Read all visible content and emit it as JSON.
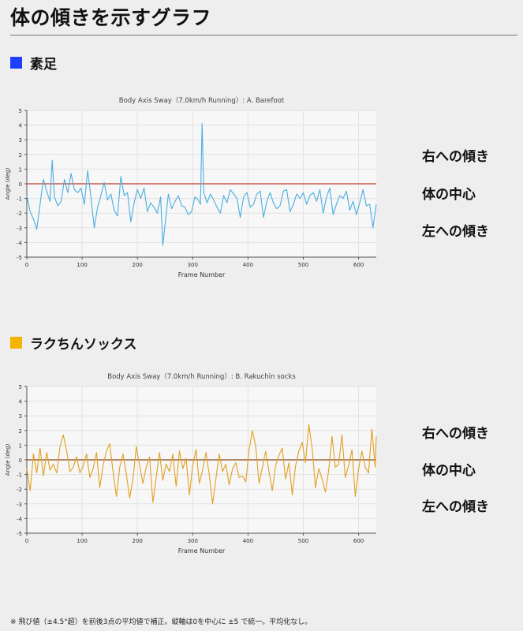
{
  "page": {
    "title": "体の傾きを示すグラフ",
    "footnote": "※ 飛び値（±4.5°超）を前後3点の平均値で補正。縦軸は0を中心に ±5 で統一。平均化なし。",
    "side_labels": {
      "right": "右への傾き",
      "center": "体の中心",
      "left": "左への傾き"
    }
  },
  "sections": [
    {
      "label": "素足",
      "color": "#1f3fff"
    },
    {
      "label": "ラクちんソックス",
      "color": "#f5b400"
    }
  ],
  "chart_data": [
    {
      "type": "line",
      "title": "Body Axis Sway（7.0km/h Running）: A. Barefoot",
      "xlabel": "Frame Number",
      "ylabel": "Angle (deg)",
      "xlim": [
        0,
        632
      ],
      "ylim": [
        -5,
        5
      ],
      "xticks": [
        0,
        100,
        200,
        300,
        400,
        500,
        600
      ],
      "yticks": [
        -5,
        -4,
        -3,
        -2,
        -1,
        0,
        1,
        2,
        3,
        4,
        5
      ],
      "grid": true,
      "color": "#4aaee0",
      "zero_line_color": "#c0392b",
      "points": [
        [
          0,
          -0.8
        ],
        [
          6,
          -1.9
        ],
        [
          12,
          -2.4
        ],
        [
          18,
          -3.1
        ],
        [
          24,
          -1.4
        ],
        [
          30,
          0.3
        ],
        [
          36,
          -0.5
        ],
        [
          42,
          -1.2
        ],
        [
          46,
          1.6
        ],
        [
          50,
          -0.9
        ],
        [
          56,
          -1.5
        ],
        [
          62,
          -1.2
        ],
        [
          68,
          0.3
        ],
        [
          74,
          -0.6
        ],
        [
          80,
          0.7
        ],
        [
          86,
          -0.4
        ],
        [
          92,
          -0.6
        ],
        [
          98,
          -0.3
        ],
        [
          104,
          -1.4
        ],
        [
          110,
          0.9
        ],
        [
          116,
          -0.9
        ],
        [
          122,
          -3.0
        ],
        [
          128,
          -1.6
        ],
        [
          134,
          -0.8
        ],
        [
          140,
          0.1
        ],
        [
          146,
          -1.1
        ],
        [
          152,
          -0.7
        ],
        [
          158,
          -1.8
        ],
        [
          164,
          -2.2
        ],
        [
          170,
          0.5
        ],
        [
          176,
          -0.8
        ],
        [
          182,
          -0.6
        ],
        [
          188,
          -2.6
        ],
        [
          194,
          -1.3
        ],
        [
          200,
          -0.4
        ],
        [
          206,
          -1.0
        ],
        [
          212,
          -0.3
        ],
        [
          218,
          -1.9
        ],
        [
          224,
          -1.3
        ],
        [
          230,
          -1.6
        ],
        [
          236,
          -2.0
        ],
        [
          242,
          -0.9
        ],
        [
          246,
          -4.2
        ],
        [
          250,
          -2.8
        ],
        [
          256,
          -0.7
        ],
        [
          262,
          -1.7
        ],
        [
          268,
          -1.2
        ],
        [
          274,
          -0.8
        ],
        [
          280,
          -1.5
        ],
        [
          286,
          -1.6
        ],
        [
          292,
          -2.1
        ],
        [
          298,
          -1.9
        ],
        [
          304,
          -0.9
        ],
        [
          310,
          -1.1
        ],
        [
          314,
          -1.4
        ],
        [
          317,
          4.1
        ],
        [
          320,
          -0.6
        ],
        [
          326,
          -1.3
        ],
        [
          332,
          -0.7
        ],
        [
          338,
          -1.1
        ],
        [
          344,
          -1.6
        ],
        [
          350,
          -2.0
        ],
        [
          356,
          -0.8
        ],
        [
          362,
          -1.3
        ],
        [
          368,
          -0.4
        ],
        [
          374,
          -0.7
        ],
        [
          380,
          -1.0
        ],
        [
          386,
          -2.3
        ],
        [
          392,
          -0.9
        ],
        [
          398,
          -0.6
        ],
        [
          404,
          -1.6
        ],
        [
          410,
          -1.4
        ],
        [
          416,
          -0.7
        ],
        [
          422,
          -0.5
        ],
        [
          428,
          -2.3
        ],
        [
          434,
          -1.2
        ],
        [
          440,
          -0.6
        ],
        [
          446,
          -1.3
        ],
        [
          452,
          -1.7
        ],
        [
          458,
          -1.5
        ],
        [
          464,
          -0.5
        ],
        [
          470,
          -0.4
        ],
        [
          476,
          -1.9
        ],
        [
          482,
          -1.4
        ],
        [
          488,
          -0.7
        ],
        [
          494,
          -1.0
        ],
        [
          500,
          -0.6
        ],
        [
          506,
          -1.4
        ],
        [
          512,
          -0.8
        ],
        [
          518,
          -0.6
        ],
        [
          524,
          -1.2
        ],
        [
          530,
          -0.4
        ],
        [
          536,
          -2.0
        ],
        [
          542,
          -0.9
        ],
        [
          548,
          -0.3
        ],
        [
          554,
          -2.1
        ],
        [
          560,
          -1.4
        ],
        [
          566,
          -0.8
        ],
        [
          572,
          -1.0
        ],
        [
          578,
          -0.5
        ],
        [
          584,
          -1.8
        ],
        [
          590,
          -1.2
        ],
        [
          596,
          -2.1
        ],
        [
          602,
          -1.3
        ],
        [
          608,
          -0.4
        ],
        [
          614,
          -1.5
        ],
        [
          620,
          -1.4
        ],
        [
          626,
          -3.0
        ],
        [
          632,
          -1.4
        ]
      ]
    },
    {
      "type": "line",
      "title": "Body Axis Sway（7.0km/h Running）: B. Rakuchin socks",
      "xlabel": "Frame Number",
      "ylabel": "Angle (deg)",
      "xlim": [
        0,
        632
      ],
      "ylim": [
        -5,
        5
      ],
      "xticks": [
        0,
        100,
        200,
        300,
        400,
        500,
        600
      ],
      "yticks": [
        -5,
        -4,
        -3,
        -2,
        -1,
        0,
        1,
        2,
        3,
        4,
        5
      ],
      "grid": true,
      "color": "#e0a020",
      "zero_line_color": "#8b4513",
      "points": [
        [
          0,
          -0.6
        ],
        [
          6,
          -2.1
        ],
        [
          12,
          0.4
        ],
        [
          18,
          -0.9
        ],
        [
          24,
          0.8
        ],
        [
          30,
          -1.1
        ],
        [
          36,
          0.5
        ],
        [
          42,
          -0.7
        ],
        [
          48,
          -0.3
        ],
        [
          54,
          -0.9
        ],
        [
          60,
          0.9
        ],
        [
          66,
          1.7
        ],
        [
          72,
          0.6
        ],
        [
          78,
          -0.8
        ],
        [
          84,
          -0.5
        ],
        [
          90,
          0.2
        ],
        [
          96,
          -0.9
        ],
        [
          102,
          -0.4
        ],
        [
          108,
          0.4
        ],
        [
          114,
          -1.2
        ],
        [
          120,
          -0.6
        ],
        [
          126,
          0.5
        ],
        [
          132,
          -1.9
        ],
        [
          138,
          -0.4
        ],
        [
          144,
          0.6
        ],
        [
          150,
          1.1
        ],
        [
          156,
          -0.8
        ],
        [
          162,
          -2.5
        ],
        [
          168,
          -0.5
        ],
        [
          174,
          0.4
        ],
        [
          180,
          -1.0
        ],
        [
          186,
          -2.6
        ],
        [
          192,
          -1.3
        ],
        [
          198,
          0.9
        ],
        [
          204,
          -0.4
        ],
        [
          210,
          -1.6
        ],
        [
          216,
          -0.5
        ],
        [
          222,
          0.2
        ],
        [
          228,
          -2.9
        ],
        [
          234,
          -1.2
        ],
        [
          240,
          0.5
        ],
        [
          246,
          -1.4
        ],
        [
          252,
          -0.3
        ],
        [
          258,
          -0.8
        ],
        [
          264,
          0.4
        ],
        [
          270,
          -1.8
        ],
        [
          276,
          0.6
        ],
        [
          282,
          -0.6
        ],
        [
          288,
          0.1
        ],
        [
          294,
          -2.4
        ],
        [
          300,
          -0.4
        ],
        [
          306,
          0.7
        ],
        [
          312,
          -1.6
        ],
        [
          318,
          -0.7
        ],
        [
          324,
          0.5
        ],
        [
          330,
          -1.0
        ],
        [
          336,
          -3.0
        ],
        [
          342,
          -1.3
        ],
        [
          348,
          0.4
        ],
        [
          354,
          -0.8
        ],
        [
          360,
          -0.3
        ],
        [
          366,
          -1.7
        ],
        [
          372,
          -0.6
        ],
        [
          378,
          -0.2
        ],
        [
          384,
          -1.2
        ],
        [
          390,
          -1.1
        ],
        [
          396,
          -1.5
        ],
        [
          402,
          0.7
        ],
        [
          408,
          2.0
        ],
        [
          414,
          0.9
        ],
        [
          420,
          -1.6
        ],
        [
          426,
          -0.5
        ],
        [
          432,
          0.6
        ],
        [
          438,
          -0.8
        ],
        [
          444,
          -2.1
        ],
        [
          450,
          -0.4
        ],
        [
          456,
          0.3
        ],
        [
          462,
          0.8
        ],
        [
          468,
          -1.3
        ],
        [
          474,
          -0.2
        ],
        [
          480,
          -2.4
        ],
        [
          486,
          -0.4
        ],
        [
          492,
          0.6
        ],
        [
          498,
          1.2
        ],
        [
          504,
          -0.2
        ],
        [
          510,
          2.4
        ],
        [
          516,
          0.8
        ],
        [
          522,
          -1.9
        ],
        [
          528,
          -0.6
        ],
        [
          534,
          -1.3
        ],
        [
          540,
          -2.2
        ],
        [
          546,
          -0.7
        ],
        [
          552,
          1.6
        ],
        [
          558,
          -0.5
        ],
        [
          564,
          -0.3
        ],
        [
          570,
          1.7
        ],
        [
          576,
          -1.2
        ],
        [
          582,
          -0.4
        ],
        [
          588,
          0.7
        ],
        [
          594,
          -2.5
        ],
        [
          600,
          -0.6
        ],
        [
          606,
          0.6
        ],
        [
          612,
          -0.5
        ],
        [
          618,
          -0.9
        ],
        [
          624,
          2.1
        ],
        [
          630,
          -0.5
        ],
        [
          632,
          1.6
        ]
      ]
    }
  ]
}
